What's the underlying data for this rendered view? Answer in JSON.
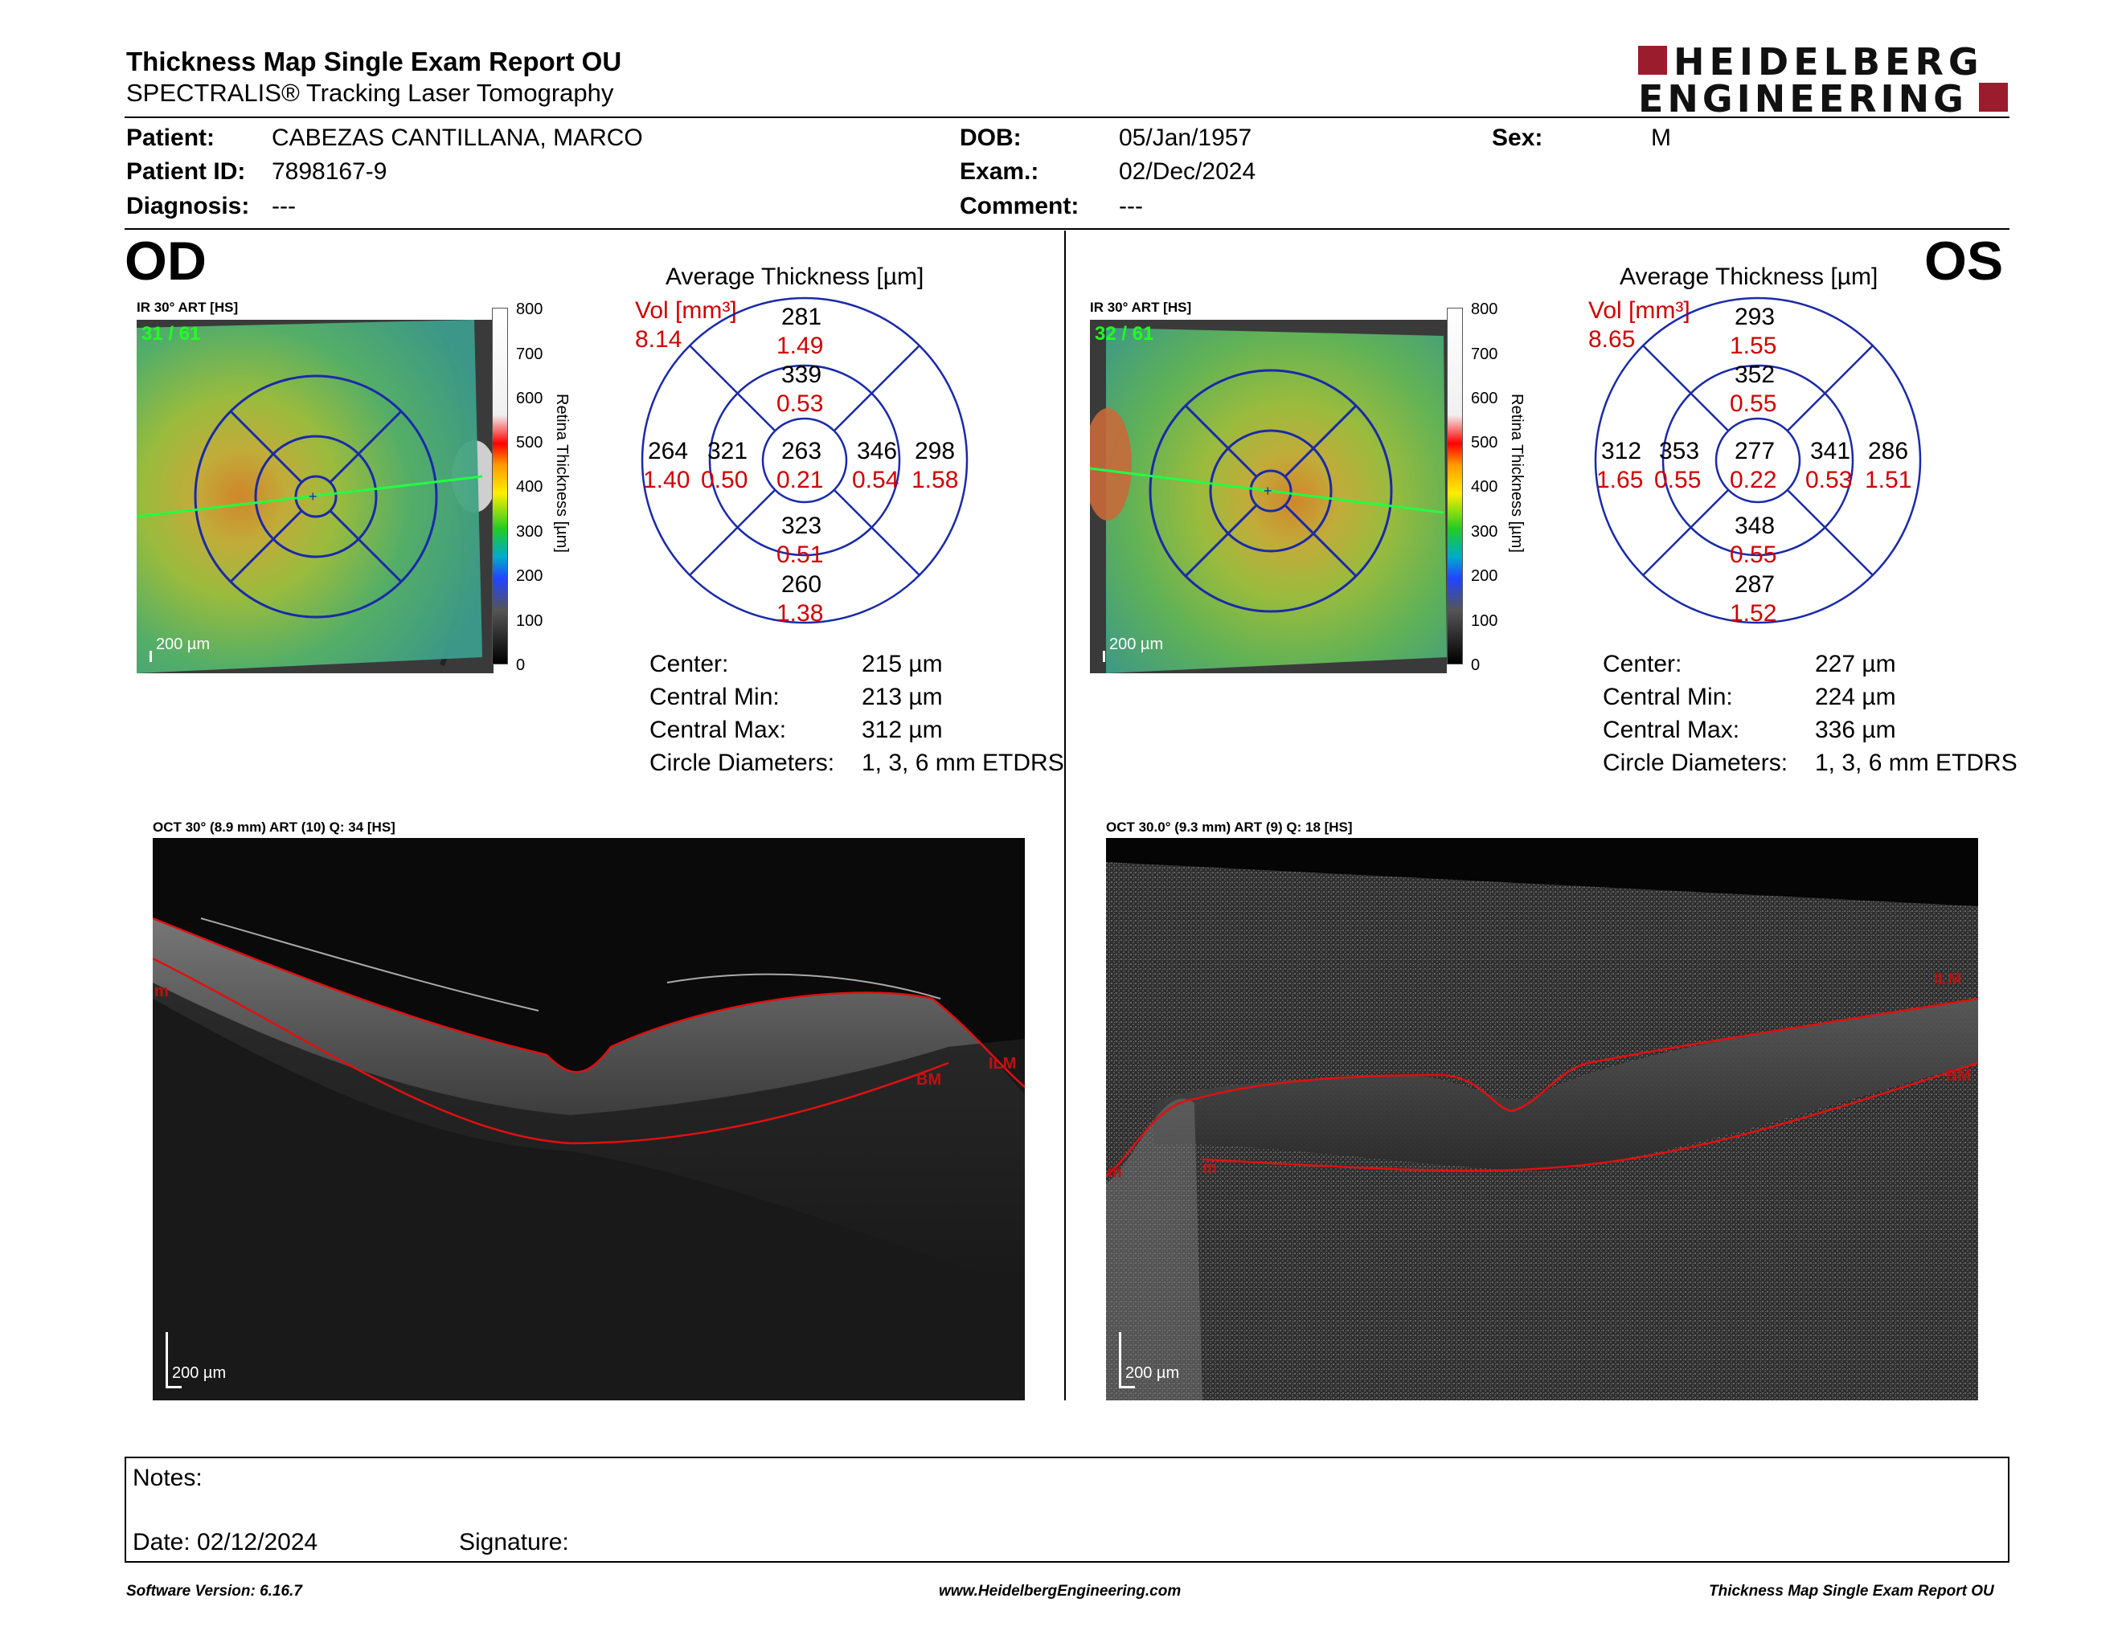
{
  "header": {
    "title": "Thickness Map Single Exam Report OU",
    "subtitle": "SPECTRALIS® Tracking Laser Tomography",
    "logo_line1": "HEIDELBERG",
    "logo_line2": "ENGINEERING"
  },
  "patient": {
    "patient_label": "Patient:",
    "patient_value": "CABEZAS CANTILLANA, MARCO",
    "id_label": "Patient ID:",
    "id_value": "7898167-9",
    "diagnosis_label": "Diagnosis:",
    "diagnosis_value": "---",
    "dob_label": "DOB:",
    "dob_value": "05/Jan/1957",
    "exam_label": "Exam.:",
    "exam_value": "02/Dec/2024",
    "comment_label": "Comment:",
    "comment_value": "---",
    "sex_label": "Sex:",
    "sex_value": "M"
  },
  "od": {
    "eye": "OD",
    "ir_header": "IR 30° ART [HS]",
    "frame": "31 / 61",
    "scale": "200 µm",
    "avg_title": "Average Thickness [µm]",
    "vol_label": "Vol [mm³]",
    "vol_value": "8.14",
    "grid": {
      "outer_top": "281",
      "outer_top_vol": "1.49",
      "inner_top": "339",
      "inner_top_vol": "0.53",
      "outer_left": "264",
      "outer_left_vol": "1.40",
      "inner_left": "321",
      "inner_left_vol": "0.50",
      "center": "263",
      "center_vol": "0.21",
      "inner_right": "346",
      "inner_right_vol": "0.54",
      "outer_right": "298",
      "outer_right_vol": "1.58",
      "inner_bottom": "323",
      "inner_bottom_vol": "0.51",
      "outer_bottom": "260",
      "outer_bottom_vol": "1.38"
    },
    "center_label": "Center:",
    "center_value": "215 µm",
    "min_label": "Central Min:",
    "min_value": "213 µm",
    "max_label": "Central Max:",
    "max_value": "312 µm",
    "diam_label": "Circle Diameters:",
    "diam_value": "1, 3, 6 mm ETDRS",
    "oct_header": "OCT 30° (8.9 mm) ART (10) Q: 34 [HS]",
    "oct_scale": "200 µm",
    "oct_labels": {
      "m": "m",
      "ilm": "ILM",
      "bm": "BM"
    }
  },
  "os": {
    "eye": "OS",
    "ir_header": "IR 30° ART [HS]",
    "frame": "32 / 61",
    "scale": "200 µm",
    "avg_title": "Average Thickness [µm]",
    "vol_label": "Vol [mm³]",
    "vol_value": "8.65",
    "grid": {
      "outer_top": "293",
      "outer_top_vol": "1.55",
      "inner_top": "352",
      "inner_top_vol": "0.55",
      "outer_left": "312",
      "outer_left_vol": "1.65",
      "inner_left": "353",
      "inner_left_vol": "0.55",
      "center": "277",
      "center_vol": "0.22",
      "inner_right": "341",
      "inner_right_vol": "0.53",
      "outer_right": "286",
      "outer_right_vol": "1.51",
      "inner_bottom": "348",
      "inner_bottom_vol": "0.55",
      "outer_bottom": "287",
      "outer_bottom_vol": "1.52"
    },
    "center_label": "Center:",
    "center_value": "227 µm",
    "min_label": "Central Min:",
    "min_value": "224 µm",
    "max_label": "Central Max:",
    "max_value": "336 µm",
    "diam_label": "Circle Diameters:",
    "diam_value": "1, 3, 6 mm ETDRS",
    "oct_header": "OCT 30.0° (9.3 mm) ART (9) Q: 18 [HS]",
    "oct_scale": "200 µm",
    "oct_labels": {
      "m": "m",
      "ilm": "ILM",
      "bm": "BM"
    }
  },
  "colorbar": {
    "ticks": [
      "800",
      "700",
      "600",
      "500",
      "400",
      "300",
      "200",
      "100",
      "0"
    ],
    "axis_label": "Retina Thickness [µm]"
  },
  "notes": {
    "notes_label": "Notes:",
    "date_label": "Date: 02/12/2024",
    "signature_label": "Signature:"
  },
  "footer": {
    "version": "Software Version: 6.16.7",
    "url": "www.HeidelbergEngineering.com",
    "report": "Thickness Map Single Exam Report OU"
  },
  "colors": {
    "brand_red": "#9b1c2c",
    "volume_red": "#d00000",
    "grid_blue": "#1a2aa8",
    "segment_red": "#e01010"
  }
}
